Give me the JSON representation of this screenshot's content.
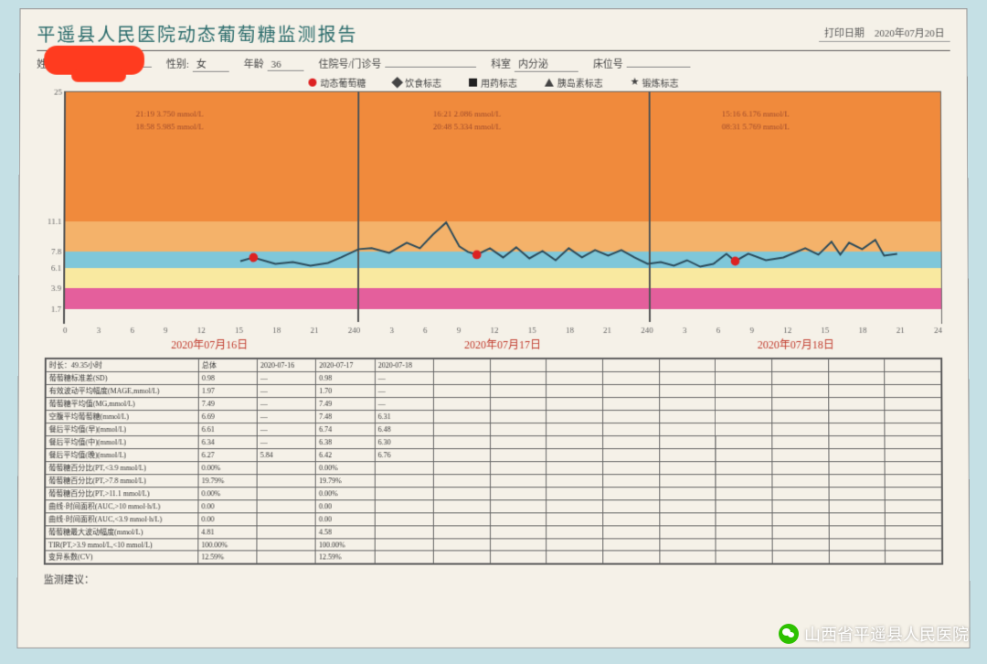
{
  "header": {
    "title": "平遥县人民医院动态葡萄糖监测报告",
    "print_label": "打印日期",
    "print_date": "2020年07月20日"
  },
  "patient": {
    "name_label": "姓名",
    "name": "",
    "sex_label": "性别:",
    "sex": "女",
    "age_label": "年龄",
    "age": "36",
    "id_label": "住院号/门诊号",
    "dept_label": "科室",
    "dept": "内分泌",
    "bed_label": "床位号"
  },
  "legend": {
    "a": "动态葡萄糖",
    "b": "饮食标志",
    "c": "用药标志",
    "d": "胰岛素标志",
    "e": "锻炼标志"
  },
  "chart": {
    "ymin": 0,
    "ymax": 25,
    "yticks": [
      25,
      11.1,
      7.8,
      6.1,
      3.9,
      1.7
    ],
    "ylabel": "mmol/L",
    "bands": [
      {
        "from": 25,
        "to": 11.1,
        "color": "#f08a3c"
      },
      {
        "from": 11.1,
        "to": 7.8,
        "color": "#f4b26a"
      },
      {
        "from": 7.8,
        "to": 6.1,
        "color": "#7fc7d9"
      },
      {
        "from": 6.1,
        "to": 3.9,
        "color": "#f9e9a0"
      },
      {
        "from": 3.9,
        "to": 1.7,
        "color": "#e45f9c"
      },
      {
        "from": 1.7,
        "to": 0,
        "color": "#f5f1e8"
      }
    ],
    "vlines_at": [
      0.3333,
      0.6667
    ],
    "annotations": [
      {
        "x": 0.16,
        "line1": "21:19 3.750 mmol/L",
        "line2": "18:58 5.985 mmol/L"
      },
      {
        "x": 0.5,
        "line1": "16:21 2.086 mmol/L",
        "line2": "20:48 5.334 mmol/L"
      },
      {
        "x": 0.83,
        "line1": "15:16 6.176 mmol/L",
        "line2": "08:31 5.769 mmol/L"
      }
    ],
    "xticks": [
      0,
      3,
      6,
      9,
      12,
      15,
      18,
      21,
      24
    ],
    "dates": [
      "2020年07月16日",
      "2020年07月17日",
      "2020年07月18日"
    ],
    "markers": [
      {
        "x": 0.215,
        "y": 7.0
      },
      {
        "x": 0.47,
        "y": 7.3
      },
      {
        "x": 0.765,
        "y": 6.6
      }
    ],
    "trace": [
      [
        0.2,
        6.6
      ],
      [
        0.215,
        7.0
      ],
      [
        0.24,
        6.3
      ],
      [
        0.26,
        6.5
      ],
      [
        0.28,
        6.1
      ],
      [
        0.3,
        6.4
      ],
      [
        0.315,
        7.0
      ],
      [
        0.335,
        7.9
      ],
      [
        0.35,
        8.0
      ],
      [
        0.37,
        7.5
      ],
      [
        0.39,
        8.6
      ],
      [
        0.405,
        8.0
      ],
      [
        0.42,
        9.5
      ],
      [
        0.435,
        10.8
      ],
      [
        0.45,
        8.2
      ],
      [
        0.46,
        7.6
      ],
      [
        0.47,
        7.3
      ],
      [
        0.485,
        8.0
      ],
      [
        0.5,
        7.0
      ],
      [
        0.515,
        8.1
      ],
      [
        0.53,
        6.9
      ],
      [
        0.545,
        7.7
      ],
      [
        0.56,
        6.7
      ],
      [
        0.575,
        8.0
      ],
      [
        0.59,
        7.0
      ],
      [
        0.605,
        7.8
      ],
      [
        0.62,
        7.2
      ],
      [
        0.635,
        7.8
      ],
      [
        0.65,
        7.0
      ],
      [
        0.665,
        6.3
      ],
      [
        0.68,
        6.5
      ],
      [
        0.695,
        6.1
      ],
      [
        0.71,
        6.7
      ],
      [
        0.725,
        6.0
      ],
      [
        0.74,
        6.3
      ],
      [
        0.755,
        7.4
      ],
      [
        0.765,
        6.6
      ],
      [
        0.78,
        7.4
      ],
      [
        0.8,
        6.7
      ],
      [
        0.82,
        7.0
      ],
      [
        0.845,
        8.0
      ],
      [
        0.86,
        7.3
      ],
      [
        0.875,
        8.7
      ],
      [
        0.885,
        7.3
      ],
      [
        0.895,
        8.6
      ],
      [
        0.91,
        7.9
      ],
      [
        0.925,
        8.9
      ],
      [
        0.935,
        7.2
      ],
      [
        0.95,
        7.4
      ]
    ]
  },
  "stats": {
    "top_header": [
      "时长：49.35小时",
      "总体",
      "2020-07-16",
      "2020-07-17",
      "2020-07-18",
      "",
      "",
      "",
      "",
      "",
      "",
      "",
      "",
      ""
    ],
    "rows": [
      [
        "葡萄糖标准差(SD)",
        "0.98",
        "—",
        "0.98",
        "—"
      ],
      [
        "有效波动平均幅度(MAGE,mmol/L)",
        "1.97",
        "—",
        "1.70",
        "—"
      ],
      [
        "葡萄糖平均值(MG,mmol/L)",
        "7.49",
        "—",
        "7.49",
        "—"
      ],
      [
        "空腹平均葡萄糖(mmol/L)",
        "6.69",
        "—",
        "7.48",
        "6.31"
      ],
      [
        "餐后平均值(早)(mmol/L)",
        "6.61",
        "—",
        "6.74",
        "6.48"
      ],
      [
        "餐后平均值(中)(mmol/L)",
        "6.34",
        "—",
        "6.38",
        "6.30"
      ],
      [
        "餐后平均值(晚)(mmol/L)",
        "6.27",
        "5.84",
        "6.42",
        "6.76"
      ],
      [
        "葡萄糖百分比(PT,<3.9 mmol/L)",
        "0.00%",
        "",
        "0.00%",
        ""
      ],
      [
        "葡萄糖百分比(PT,>7.8 mmol/L)",
        "19.79%",
        "",
        "19.79%",
        ""
      ],
      [
        "葡萄糖百分比(PT,>11.1 mmol/L)",
        "0.00%",
        "",
        "0.00%",
        ""
      ],
      [
        "曲线·时间面积(AUC,>10 mmol·h/L)",
        "0.00",
        "",
        "0.00",
        ""
      ],
      [
        "曲线·时间面积(AUC,<3.9 mmol·h/L)",
        "0.00",
        "",
        "0.00",
        ""
      ],
      [
        "葡萄糖最大波动幅度(mmol/L)",
        "4.81",
        "",
        "4.58",
        ""
      ],
      [
        "TIR(PT,>3.9 mmol/L,<10 mmol/L)",
        "100.00%",
        "",
        "100.00%",
        ""
      ],
      [
        "变异系数(CV)",
        "12.59%",
        "",
        "12.59%",
        ""
      ]
    ]
  },
  "advice_label": "监测建议：",
  "watermark": "山西省平遥县人民医院"
}
